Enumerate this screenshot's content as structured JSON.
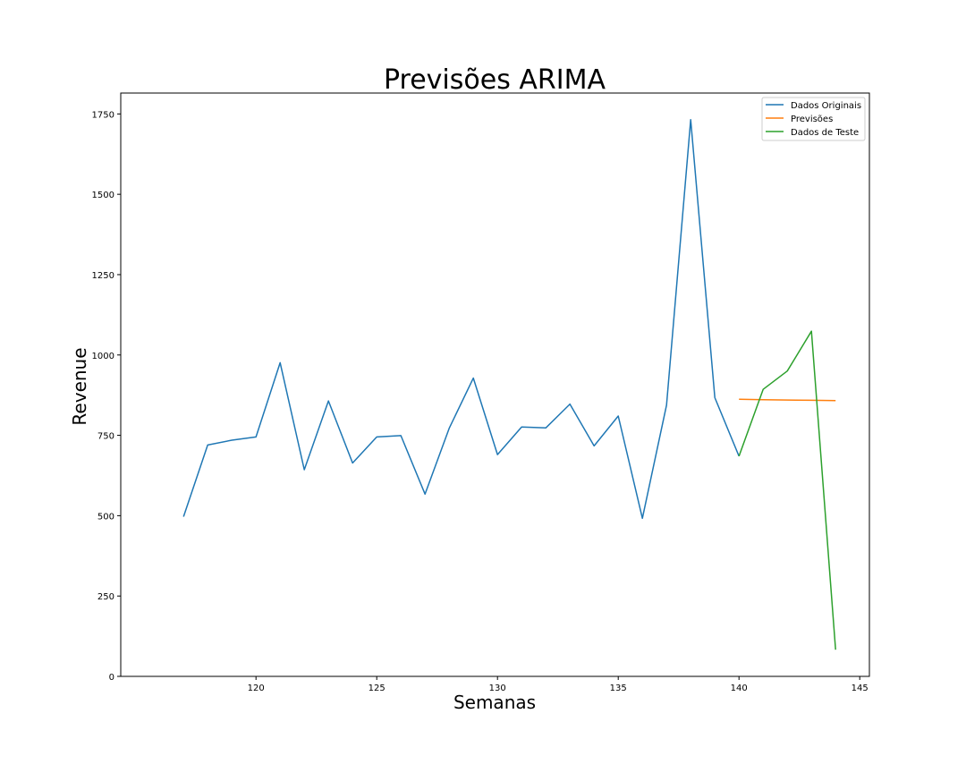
{
  "chart_data": {
    "type": "line",
    "title": "Previsões ARIMA",
    "xlabel": "Semanas",
    "ylabel": "Revenue",
    "xlim": [
      114.4,
      145.4
    ],
    "ylim": [
      0,
      1815
    ],
    "xticks": [
      120,
      125,
      130,
      135,
      140,
      145
    ],
    "yticks": [
      0,
      250,
      500,
      750,
      1000,
      1250,
      1500,
      1750
    ],
    "grid": false,
    "legend_position": "top-right",
    "series": [
      {
        "name": "Dados Originais",
        "color": "#1f77b4",
        "x": [
          117,
          118,
          119,
          120,
          121,
          122,
          123,
          124,
          125,
          126,
          127,
          128,
          129,
          130,
          131,
          132,
          133,
          134,
          135,
          136,
          137,
          138,
          139,
          140
        ],
        "y": [
          497,
          720,
          735,
          745,
          976,
          643,
          857,
          664,
          745,
          749,
          567,
          772,
          928,
          690,
          776,
          773,
          847,
          717,
          810,
          492,
          844,
          1732,
          867,
          685
        ]
      },
      {
        "name": "Previsões",
        "color": "#ff7f0e",
        "x": [
          140,
          141,
          142,
          143,
          144
        ],
        "y": [
          862,
          861,
          860,
          859,
          858
        ]
      },
      {
        "name": "Dados de Teste",
        "color": "#2ca02c",
        "x": [
          140,
          141,
          142,
          143,
          144
        ],
        "y": [
          685,
          893,
          950,
          1074,
          83
        ]
      }
    ]
  }
}
